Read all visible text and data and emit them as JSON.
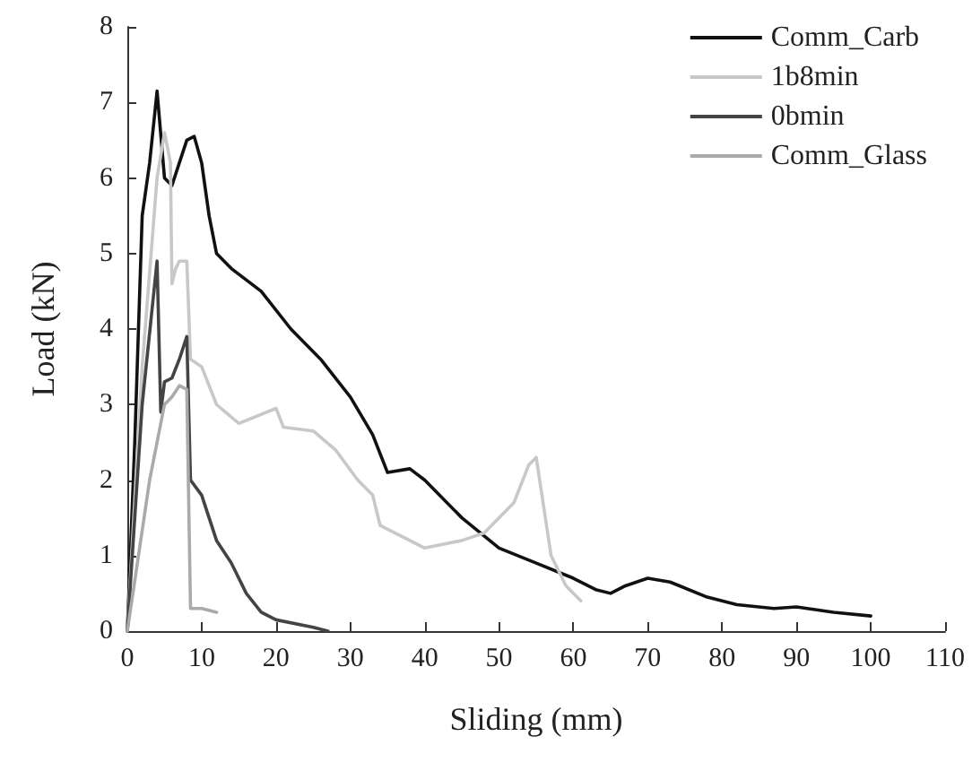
{
  "chart_data": {
    "type": "line",
    "xlabel": "Sliding (mm)",
    "ylabel": "Load (kN)",
    "xlim": [
      0,
      110
    ],
    "xticks": [
      0,
      10,
      20,
      30,
      40,
      50,
      60,
      70,
      80,
      90,
      100,
      110
    ],
    "ylim": [
      0,
      8
    ],
    "yticks": [
      0,
      1,
      2,
      3,
      4,
      5,
      6,
      7,
      8
    ],
    "grid": false,
    "legend": "top right",
    "marker": "none",
    "line_style": "solid",
    "series": [
      {
        "name": "Comm_Carb",
        "color": "#111111",
        "x": [
          0,
          1,
          2,
          3,
          4,
          5,
          6,
          7,
          8,
          9,
          10,
          11,
          12,
          14,
          18,
          22,
          26,
          30,
          33,
          35,
          38,
          40,
          45,
          50,
          55,
          60,
          63,
          65,
          67,
          70,
          73,
          78,
          82,
          87,
          90,
          95,
          100
        ],
        "values": [
          0,
          2.5,
          5.5,
          6.2,
          7.15,
          6.0,
          5.9,
          6.2,
          6.5,
          6.55,
          6.2,
          5.5,
          5.0,
          4.8,
          4.5,
          4.0,
          3.6,
          3.1,
          2.6,
          2.1,
          2.15,
          2.0,
          1.5,
          1.1,
          0.9,
          0.7,
          0.55,
          0.5,
          0.6,
          0.7,
          0.65,
          0.45,
          0.35,
          0.3,
          0.32,
          0.25,
          0.2
        ]
      },
      {
        "name": "1b8min",
        "color": "#c8c8c8",
        "x": [
          0,
          2,
          4,
          5,
          5.8,
          6,
          6.5,
          7,
          8,
          8.5,
          10,
          12,
          15,
          20,
          21,
          25,
          28,
          31,
          33,
          34,
          38,
          40,
          45,
          48,
          52,
          54,
          55,
          57,
          59,
          61
        ],
        "values": [
          0,
          3.5,
          6.0,
          6.6,
          6.2,
          4.6,
          4.8,
          4.9,
          4.9,
          3.6,
          3.5,
          3.0,
          2.75,
          2.95,
          2.7,
          2.65,
          2.4,
          2.0,
          1.8,
          1.4,
          1.2,
          1.1,
          1.2,
          1.3,
          1.7,
          2.2,
          2.3,
          1.0,
          0.6,
          0.4
        ]
      },
      {
        "name": "0bmin",
        "color": "#444444",
        "x": [
          0,
          2,
          4,
          4.5,
          5,
          6,
          7,
          8,
          8.5,
          10,
          12,
          14,
          16,
          18,
          20,
          25,
          27
        ],
        "values": [
          0,
          3.0,
          4.9,
          2.9,
          3.3,
          3.35,
          3.6,
          3.9,
          2.0,
          1.8,
          1.2,
          0.9,
          0.5,
          0.25,
          0.15,
          0.05,
          0
        ]
      },
      {
        "name": "Comm_Glass",
        "color": "#aaaaaa",
        "x": [
          0,
          3,
          5,
          6,
          7,
          8,
          8.5,
          10,
          12
        ],
        "values": [
          0,
          2.0,
          3.0,
          3.1,
          3.25,
          3.2,
          0.3,
          0.3,
          0.25
        ]
      }
    ]
  }
}
